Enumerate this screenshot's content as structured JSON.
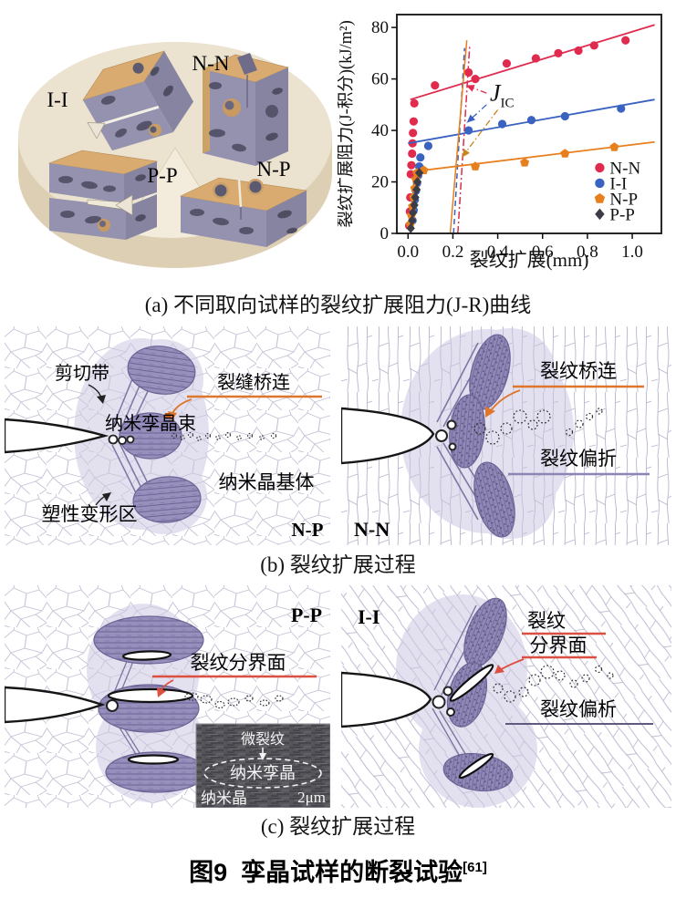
{
  "accent_colors": {
    "orange_annotation": "#de762b",
    "red_annotation": "#dd4f41",
    "purple_annotation": "#8d85b3",
    "dark_purple_annotation": "#5f5a80"
  },
  "panel_a": {
    "disc_labels": {
      "ii": "I-I",
      "nn": "N-N",
      "pp": "P-P",
      "np": "N-P"
    },
    "caption": "(a) 不同取向试样的裂纹扩展阻力(J-R)曲线"
  },
  "chart_data": {
    "type": "scatter",
    "title": "",
    "xlabel": "裂纹扩展(mm)",
    "ylabel": "裂纹扩展阻力(J-积分)(kJ/m²)",
    "xlim": [
      -0.05,
      1.13
    ],
    "ylim": [
      0,
      85
    ],
    "xticks": [
      "0.0",
      "0.2",
      "0.4",
      "0.6",
      "0.8",
      "1.0"
    ],
    "yticks": [
      "0",
      "20",
      "40",
      "60",
      "80"
    ],
    "grid": false,
    "legend_position": "lower right inside",
    "annotation": {
      "main": "J",
      "sub": "IC"
    },
    "series": [
      {
        "name": "N-N",
        "color": "#e02a4e",
        "marker": "circle",
        "points": [
          [
            0.005,
            3
          ],
          [
            0.008,
            8.5
          ],
          [
            0.01,
            14
          ],
          [
            0.012,
            23
          ],
          [
            0.015,
            26.5
          ],
          [
            0.018,
            31
          ],
          [
            0.02,
            35
          ],
          [
            0.022,
            39
          ],
          [
            0.025,
            43.5
          ],
          [
            0.028,
            50.5
          ],
          [
            0.12,
            57.5
          ],
          [
            0.27,
            62.5
          ],
          [
            0.3,
            60
          ],
          [
            0.44,
            66
          ],
          [
            0.57,
            68
          ],
          [
            0.67,
            70
          ],
          [
            0.76,
            71
          ],
          [
            0.83,
            73
          ],
          [
            0.97,
            75
          ]
        ],
        "fit": [
          [
            0.01,
            52
          ],
          [
            1.1,
            81
          ]
        ],
        "offset_line": {
          "from": [
            0.222,
            0
          ],
          "to": [
            0.275,
            73
          ],
          "dash": "dashdot"
        }
      },
      {
        "name": "I-I",
        "color": "#3a62c0",
        "marker": "circle",
        "points": [
          [
            0.02,
            5
          ],
          [
            0.025,
            9
          ],
          [
            0.03,
            13
          ],
          [
            0.035,
            16.5
          ],
          [
            0.04,
            19.5
          ],
          [
            0.045,
            22.5
          ],
          [
            0.05,
            26
          ],
          [
            0.055,
            29.5
          ],
          [
            0.09,
            34
          ],
          [
            0.27,
            40
          ],
          [
            0.42,
            42.5
          ],
          [
            0.55,
            44
          ],
          [
            0.7,
            45.5
          ],
          [
            0.95,
            48.5
          ]
        ],
        "fit": [
          [
            0.0,
            35
          ],
          [
            1.1,
            52
          ]
        ],
        "offset_line": {
          "from": [
            0.203,
            0
          ],
          "to": [
            0.252,
            72
          ],
          "dash": "dash"
        }
      },
      {
        "name": "N-P",
        "color": "#e87f1e",
        "marker": "pentagon",
        "points": [
          [
            0.01,
            3.5
          ],
          [
            0.015,
            7
          ],
          [
            0.02,
            10.5
          ],
          [
            0.025,
            14
          ],
          [
            0.03,
            17.5
          ],
          [
            0.035,
            21
          ],
          [
            0.04,
            23.5
          ],
          [
            0.07,
            24.5
          ],
          [
            0.3,
            26
          ],
          [
            0.52,
            27.5
          ],
          [
            0.7,
            31
          ],
          [
            0.92,
            33.5
          ]
        ],
        "fit": [
          [
            0.02,
            24
          ],
          [
            1.1,
            35.5
          ]
        ],
        "offset_line": {
          "from": [
            0.188,
            0
          ],
          "to": [
            0.262,
            75
          ],
          "dash": "solid"
        }
      },
      {
        "name": "P-P",
        "color": "#3c3c46",
        "marker": "diamond",
        "points": [
          [
            0.012,
            2
          ],
          [
            0.018,
            5
          ],
          [
            0.022,
            8
          ],
          [
            0.028,
            11
          ],
          [
            0.032,
            14
          ],
          [
            0.038,
            17
          ],
          [
            0.042,
            20
          ],
          [
            0.05,
            23.5
          ]
        ],
        "fit": null,
        "offset_line": null
      }
    ],
    "jic_arrows": [
      {
        "color": "#e02a4e",
        "from": [
          0.35,
          54.5
        ],
        "to": [
          0.258,
          57.5
        ]
      },
      {
        "color": "#3a62c0",
        "from": [
          0.35,
          50.0
        ],
        "to": [
          0.262,
          43.0
        ]
      },
      {
        "color": "#c8861e",
        "from": [
          0.4,
          48.0
        ],
        "to": [
          0.24,
          29.5
        ]
      }
    ],
    "legend": {
      "x": 0.855,
      "ys": [
        25.5,
        19.5,
        13.5,
        7.5
      ]
    }
  },
  "panel_b": {
    "caption": "(b) 裂纹扩展过程",
    "np": {
      "tag": "N-P",
      "labels": {
        "shear_band": "剪切带",
        "crack_bridge": "裂缝桥连",
        "twin_bundle": "纳米孪晶束",
        "matrix": "纳米晶基体",
        "plastic_zone": "塑性变形区"
      }
    },
    "nn": {
      "tag": "N-N",
      "labels": {
        "crack_bridge": "裂纹桥连",
        "crack_deflect": "裂纹偏折"
      }
    }
  },
  "panel_c": {
    "caption": "(c) 裂纹扩展过程",
    "pp": {
      "tag": "P-P",
      "labels": {
        "interface": "裂纹分界面"
      },
      "inset": {
        "microcrack": "微裂纹",
        "nanotwin": "纳米孪晶",
        "nanocrystal": "纳米晶",
        "scale": "2μm"
      }
    },
    "ii": {
      "tag": "I-I",
      "labels": {
        "interface_line1": "裂纹",
        "interface_line2": "分界面",
        "crack_deflect": "裂纹偏析"
      }
    }
  },
  "figure_title": {
    "prefix": "图9",
    "text": "孪晶试样的断裂试验",
    "ref": "[61]"
  }
}
